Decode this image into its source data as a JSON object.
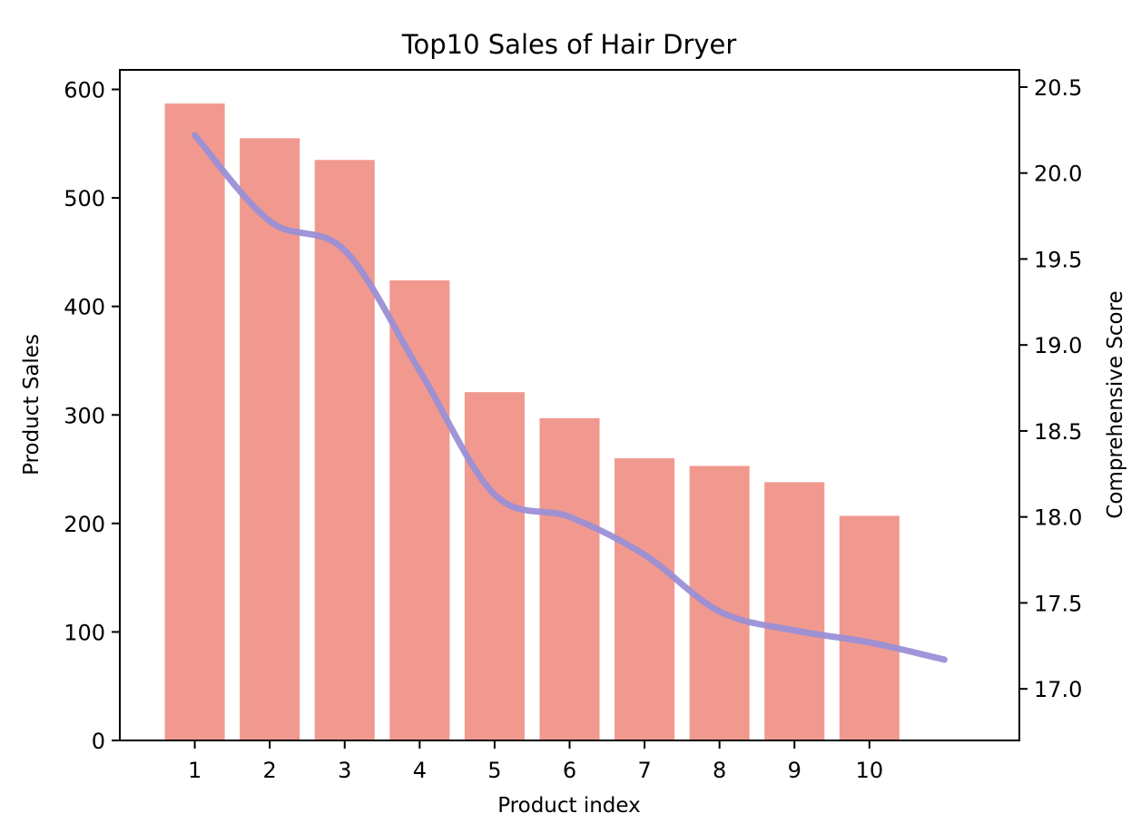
{
  "chart_data": {
    "type": "bar",
    "title": "Top10 Sales of Hair Dryer",
    "xlabel": "Product index",
    "ylabel": "Product Sales",
    "y2label": "Comprehensive Score",
    "categories": [
      "1",
      "2",
      "3",
      "4",
      "5",
      "6",
      "7",
      "8",
      "9",
      "10"
    ],
    "xlim": [
      0.0,
      12.0
    ],
    "ylim": [
      0,
      618
    ],
    "y2lim": [
      16.7,
      20.6
    ],
    "yticks": [
      0,
      100,
      200,
      300,
      400,
      500,
      600
    ],
    "y2ticks": [
      17.0,
      17.5,
      18.0,
      18.5,
      19.0,
      19.5,
      20.0,
      20.5
    ],
    "y2tick_labels": [
      "17.0",
      "17.5",
      "18.0",
      "18.5",
      "19.0",
      "19.5",
      "20.0",
      "20.5"
    ],
    "series": [
      {
        "type": "bar",
        "axis": "left",
        "color": "#f1998f",
        "x": [
          1,
          2,
          3,
          4,
          5,
          6,
          7,
          8,
          9,
          10
        ],
        "values": [
          587,
          555,
          535,
          424,
          321,
          297,
          260,
          253,
          238,
          207
        ]
      },
      {
        "type": "line",
        "axis": "right",
        "smooth": true,
        "color": "#9a8fd6",
        "x": [
          1,
          2,
          3,
          4,
          5,
          6,
          7,
          8,
          9,
          10,
          11
        ],
        "values": [
          20.22,
          19.72,
          19.55,
          18.85,
          18.13,
          18.0,
          17.78,
          17.45,
          17.34,
          17.27,
          17.17
        ]
      }
    ],
    "grid": false,
    "legend": "none"
  }
}
